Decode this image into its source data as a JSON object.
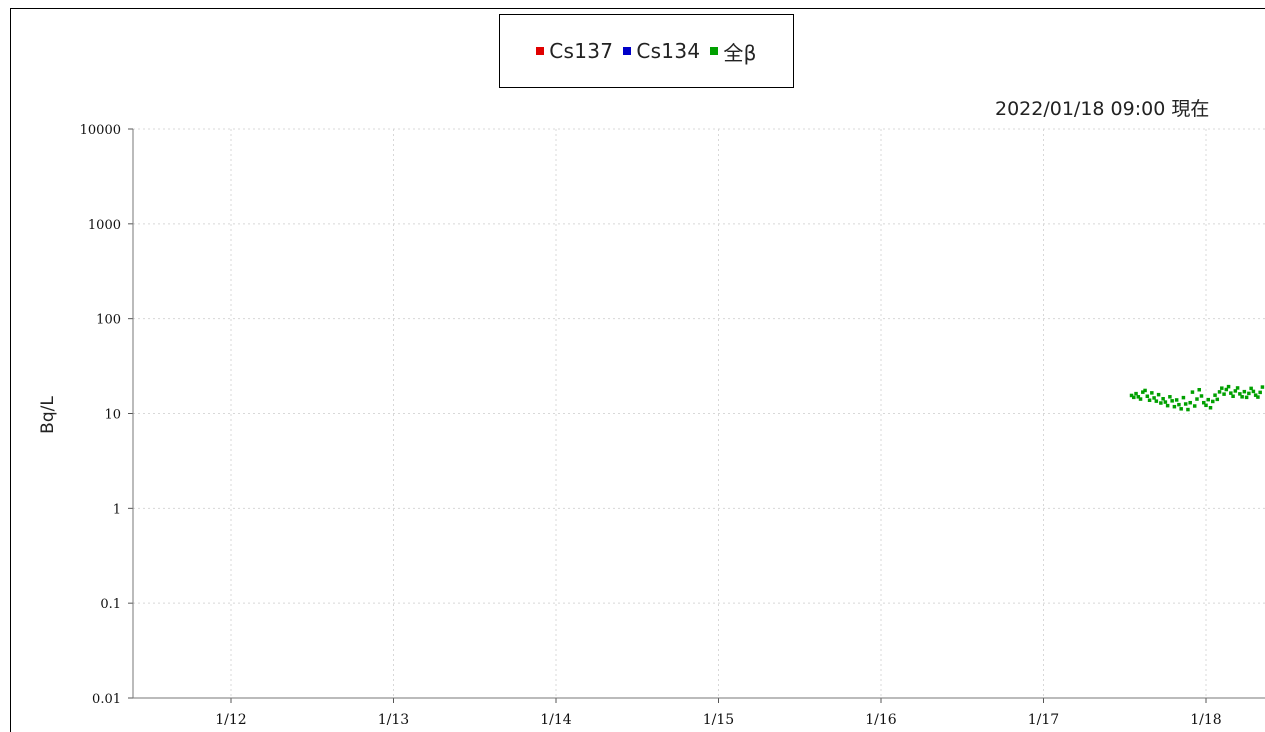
{
  "timestamp": "2022/01/18 09:00 現在",
  "legend": [
    {
      "label": "Cs137",
      "color": "#e00000"
    },
    {
      "label": "Cs134",
      "color": "#0000c8"
    },
    {
      "label": "全β",
      "color": "#00a000"
    }
  ],
  "chart_data": {
    "type": "scatter",
    "ylabel": "Bq/L",
    "yscale": "log",
    "ylim": [
      0.01,
      10000
    ],
    "yticks": [
      "0.01",
      "0.1",
      "1",
      "10",
      "100",
      "1000",
      "10000"
    ],
    "xticks": [
      "1/12",
      "1/13",
      "1/14",
      "1/15",
      "1/16",
      "1/17",
      "1/18"
    ],
    "grid": true,
    "legend_position": "top-center",
    "series": [
      {
        "name": "Cs137",
        "color": "#e00000",
        "points": []
      },
      {
        "name": "Cs134",
        "color": "#0000c8",
        "points": []
      },
      {
        "name": "全β",
        "color": "#00a000",
        "points": [
          [
            "1/17 13:00",
            15.5
          ],
          [
            "1/17 13:20",
            14.8
          ],
          [
            "1/17 13:40",
            16.2
          ],
          [
            "1/17 14:00",
            15.0
          ],
          [
            "1/17 14:20",
            14.2
          ],
          [
            "1/17 14:40",
            16.8
          ],
          [
            "1/17 15:00",
            17.5
          ],
          [
            "1/17 15:20",
            15.2
          ],
          [
            "1/17 15:40",
            13.8
          ],
          [
            "1/17 16:00",
            16.5
          ],
          [
            "1/17 16:20",
            14.6
          ],
          [
            "1/17 16:40",
            13.5
          ],
          [
            "1/17 17:00",
            15.8
          ],
          [
            "1/17 17:20",
            12.9
          ],
          [
            "1/17 17:40",
            14.3
          ],
          [
            "1/17 18:00",
            13.2
          ],
          [
            "1/17 18:20",
            12.1
          ],
          [
            "1/17 18:40",
            15.0
          ],
          [
            "1/17 19:00",
            13.6
          ],
          [
            "1/17 19:20",
            11.8
          ],
          [
            "1/17 19:40",
            13.9
          ],
          [
            "1/17 20:00",
            12.4
          ],
          [
            "1/17 20:20",
            11.2
          ],
          [
            "1/17 20:40",
            14.7
          ],
          [
            "1/17 21:00",
            12.6
          ],
          [
            "1/17 21:20",
            11.0
          ],
          [
            "1/17 21:40",
            13.0
          ],
          [
            "1/17 22:00",
            16.8
          ],
          [
            "1/17 22:20",
            12.0
          ],
          [
            "1/17 22:40",
            14.2
          ],
          [
            "1/17 23:00",
            17.8
          ],
          [
            "1/17 23:20",
            15.3
          ],
          [
            "1/17 23:40",
            13.0
          ],
          [
            "1/18 00:00",
            12.2
          ],
          [
            "1/18 00:20",
            14.0
          ],
          [
            "1/18 00:40",
            11.5
          ],
          [
            "1/18 01:00",
            13.4
          ],
          [
            "1/18 01:20",
            15.6
          ],
          [
            "1/18 01:40",
            14.1
          ],
          [
            "1/18 02:00",
            16.9
          ],
          [
            "1/18 02:20",
            18.5
          ],
          [
            "1/18 02:40",
            16.0
          ],
          [
            "1/18 03:00",
            17.9
          ],
          [
            "1/18 03:20",
            19.2
          ],
          [
            "1/18 03:40",
            16.4
          ],
          [
            "1/18 04:00",
            15.2
          ],
          [
            "1/18 04:20",
            17.3
          ],
          [
            "1/18 04:40",
            18.6
          ],
          [
            "1/18 05:00",
            16.1
          ],
          [
            "1/18 05:20",
            15.0
          ],
          [
            "1/18 05:40",
            17.0
          ],
          [
            "1/18 06:00",
            14.8
          ],
          [
            "1/18 06:20",
            16.3
          ],
          [
            "1/18 06:40",
            18.4
          ],
          [
            "1/18 07:00",
            17.1
          ],
          [
            "1/18 07:20",
            15.6
          ],
          [
            "1/18 07:40",
            14.9
          ],
          [
            "1/18 08:00",
            16.7
          ],
          [
            "1/18 08:20",
            19.0
          ],
          [
            "1/18 08:40",
            20.5
          ],
          [
            "1/18 09:00",
            18.8
          ]
        ]
      }
    ]
  }
}
